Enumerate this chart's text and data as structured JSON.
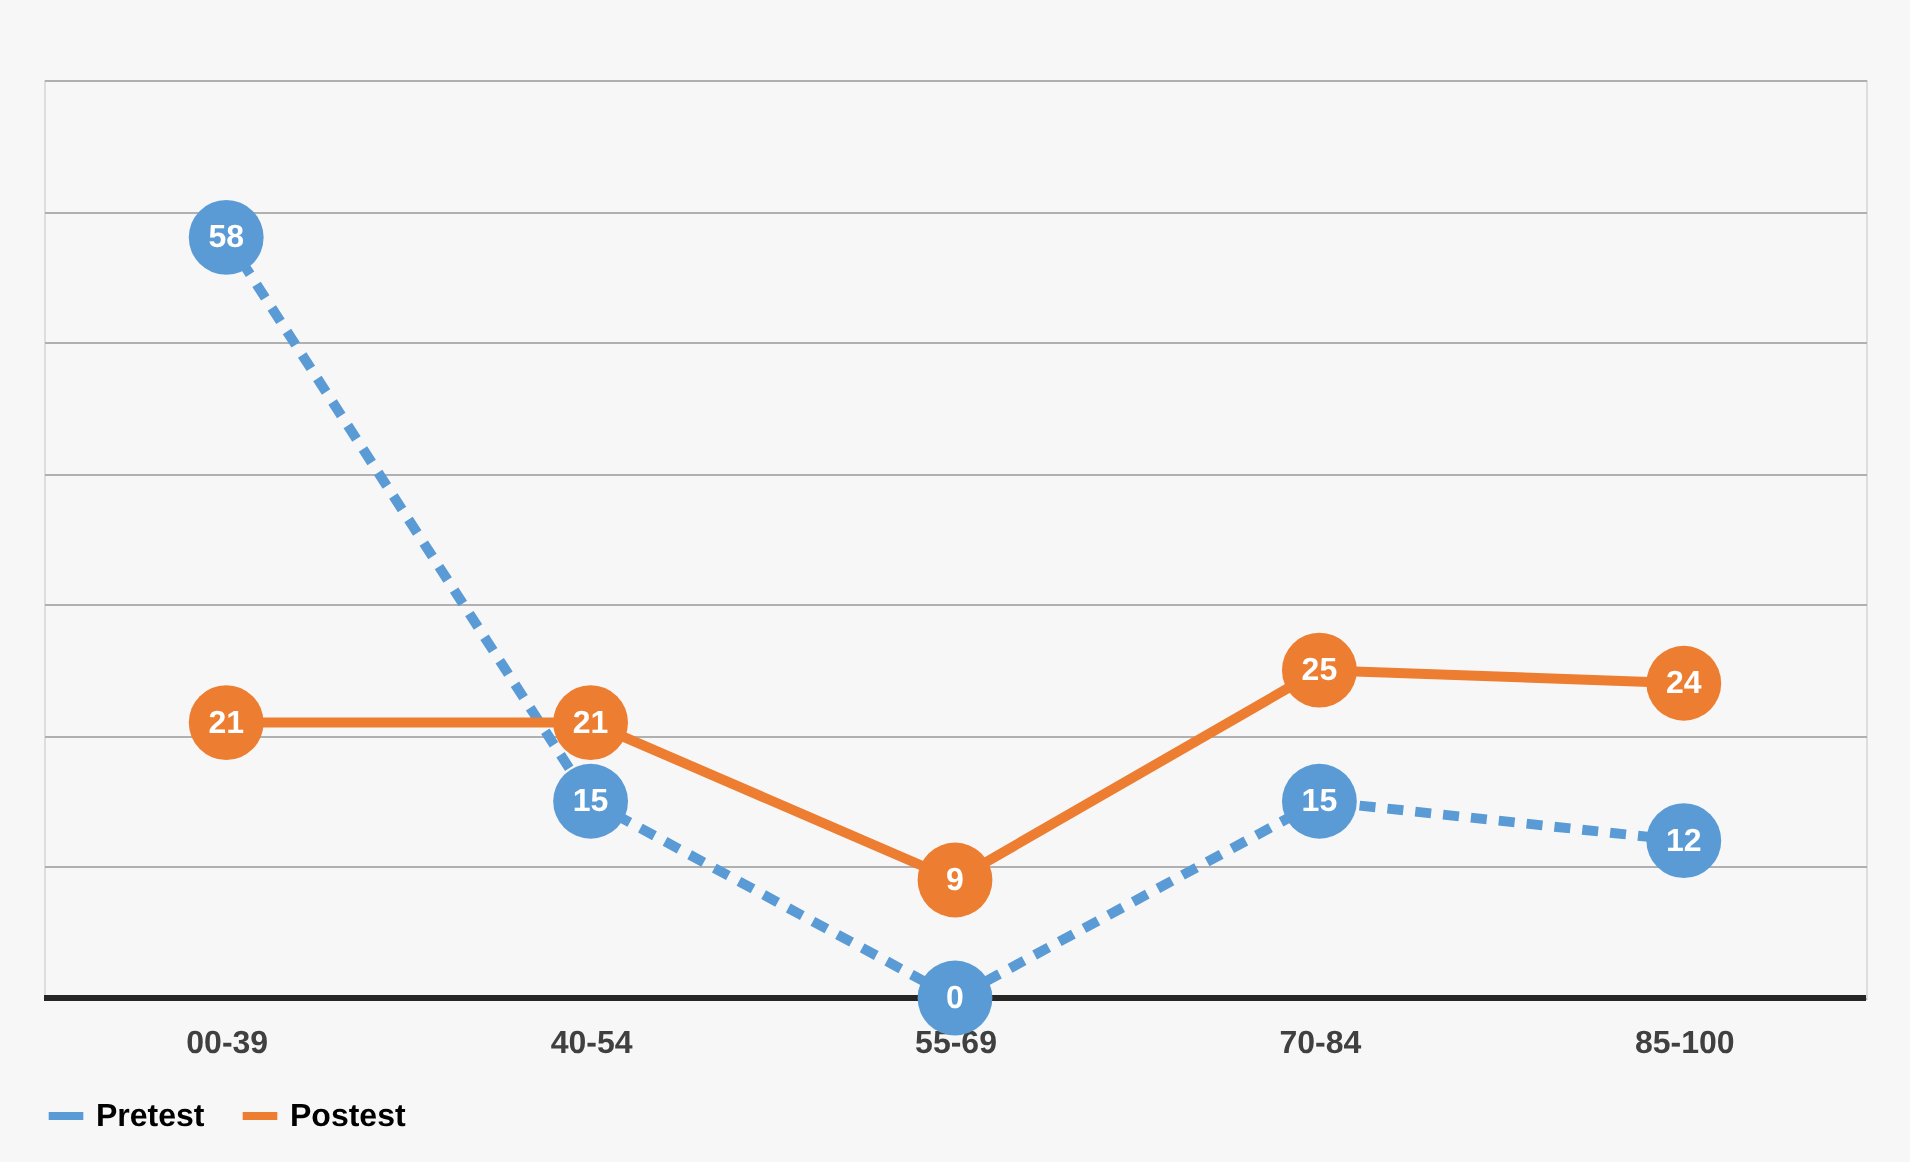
{
  "chart_data": {
    "type": "line",
    "categories": [
      "00-39",
      "40-54",
      "55-69",
      "70-84",
      "85-100"
    ],
    "series": [
      {
        "name": "Pretest",
        "color": "#5b9bd5",
        "values": [
          58,
          15,
          0,
          15,
          12
        ],
        "line_style": "dashed"
      },
      {
        "name": "Postest",
        "color": "#ed7d31",
        "values": [
          21,
          21,
          9,
          25,
          24
        ],
        "line_style": "solid"
      }
    ],
    "ylim": [
      0,
      70
    ],
    "yticks": [
      {
        "value": 0,
        "label": null
      },
      {
        "value": 10,
        "label": null
      },
      {
        "value": 20,
        "label": null
      },
      {
        "value": 30,
        "label": null
      },
      {
        "value": 40,
        "label": null
      },
      {
        "value": 50,
        "label": null
      },
      {
        "value": 60,
        "label": null
      },
      {
        "value": 70,
        "label": null
      }
    ],
    "tick_labels": "x",
    "grid": "y",
    "legend": "bottom",
    "marker": "circle",
    "data_labels": true
  }
}
